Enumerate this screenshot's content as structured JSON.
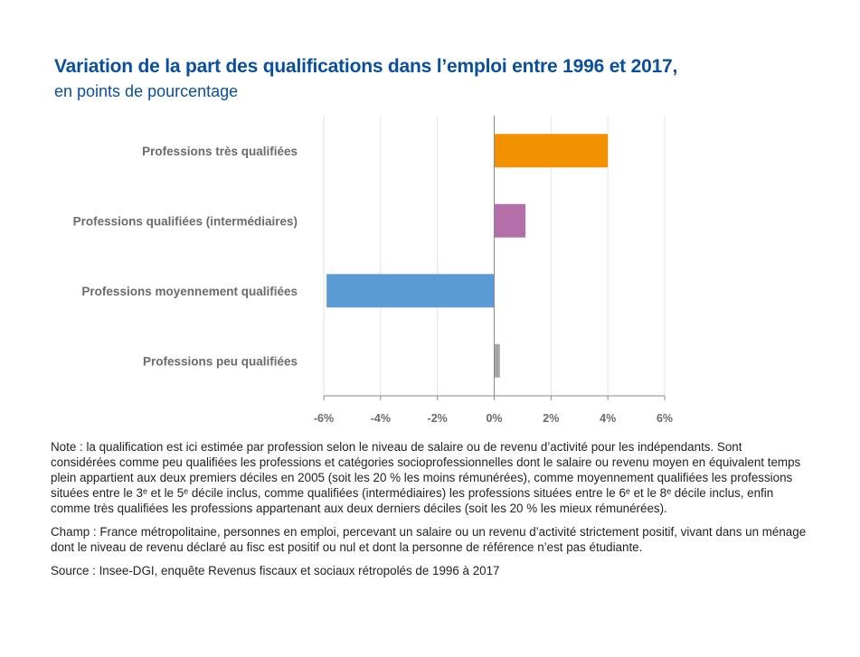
{
  "title": "Variation de la part des qualifications dans l’emploi entre 1996 et 2017,",
  "subtitle": "en points de pourcentage",
  "chart_data": {
    "type": "bar",
    "orientation": "horizontal",
    "categories": [
      "Professions très qualifiées",
      "Professions qualifiées (intermédiaires)",
      "Professions moyennement qualifiées",
      "Professions peu qualifiées"
    ],
    "values": [
      4.0,
      1.1,
      -5.9,
      0.2
    ],
    "colors": [
      "#f39200",
      "#b46fa8",
      "#5b9bd5",
      "#a6a6a6"
    ],
    "xlim": [
      -6,
      6
    ],
    "xticks": [
      -6,
      -4,
      -2,
      0,
      2,
      4,
      6
    ],
    "xtick_labels": [
      "-6%",
      "-4%",
      "-2%",
      "0%",
      "2%",
      "4%",
      "6%"
    ],
    "grid": true
  },
  "notes": {
    "note": "Note : la qualification est ici estimée par profession selon le niveau de salaire ou de revenu d’activité pour les indépendants. Sont considérées comme peu qualifiées les professions et catégories socioprofessionnelles dont le salaire ou revenu moyen en équivalent temps plein appartient aux deux premiers déciles en 2005 (soit les 20 % les moins rémunérées), comme moyennement qualifiées les professions situées entre le 3ᵉ et le 5ᵉ décile inclus, comme qualifiées (intermédiaires) les professions situées entre le 6ᵉ et le 8ᵉ décile inclus, enfin comme très qualifiées les professions appartenant aux deux derniers déciles (soit les 20 % les mieux rémunérées).",
    "champ": "Champ : France métropolitaine, personnes en emploi, percevant un salaire ou un revenu d’activité strictement positif, vivant dans un ménage dont le niveau de revenu déclaré au fisc est positif ou nul et dont la personne de référence n’est pas étudiante.",
    "source": "Source : Insee-DGI, enquête Revenus fiscaux et sociaux rétropolés de 1996 à 2017"
  }
}
